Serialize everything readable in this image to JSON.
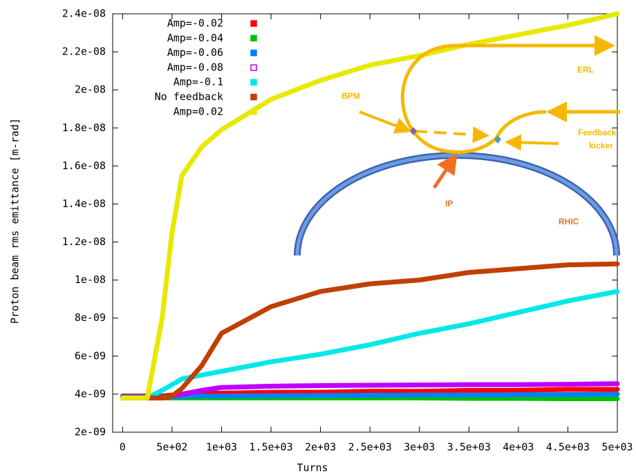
{
  "chart_data": {
    "type": "line",
    "x_label": "Turns",
    "y_label": "Proton beam rms emittance [m-rad]",
    "legend": "upper left",
    "xlim": [
      -100,
      5000
    ],
    "ylim": [
      2e-09,
      2.4e-08
    ],
    "xticks": [
      0,
      {
        "value": 500,
        "label": "5e+02"
      },
      {
        "value": 1000,
        "label": "1e+03"
      },
      {
        "value": 1500,
        "label": "1.5e+03"
      },
      {
        "value": 2000,
        "label": "2e+03"
      },
      {
        "value": 2500,
        "label": "2.5e+03"
      },
      {
        "value": 3000,
        "label": "3e+03"
      },
      {
        "value": 3500,
        "label": "3.5e+03"
      },
      {
        "value": 4000,
        "label": "4e+03"
      },
      {
        "value": 4500,
        "label": "4.5e+03"
      },
      {
        "value": 5000,
        "label": "5e+03"
      }
    ],
    "yticks": [
      {
        "value": 2e-09,
        "label": "2e-09"
      },
      {
        "value": 4e-09,
        "label": "4e-09"
      },
      {
        "value": 6e-09,
        "label": "6e-09"
      },
      {
        "value": 8e-09,
        "label": "8e-09"
      },
      {
        "value": 1e-08,
        "label": "1e-08"
      },
      {
        "value": 1.2e-08,
        "label": "1.2e-08"
      },
      {
        "value": 1.4e-08,
        "label": "1.4e-08"
      },
      {
        "value": 1.6e-08,
        "label": "1.6e-08"
      },
      {
        "value": 1.8e-08,
        "label": "1.8e-08"
      },
      {
        "value": 2e-08,
        "label": "2e-08"
      },
      {
        "value": 2.2e-08,
        "label": "2.2e-08"
      },
      {
        "value": 2.4e-08,
        "label": "2.4e-08"
      }
    ],
    "x": [
      0,
      250,
      400,
      500,
      600,
      800,
      1000,
      1500,
      2000,
      2500,
      3000,
      3500,
      4000,
      4500,
      5000
    ],
    "series": [
      {
        "name": "Amp=-0.02",
        "color": "#ff0000",
        "values": [
          3.9e-09,
          3.9e-09,
          3.9e-09,
          3.95e-09,
          4e-09,
          4.05e-09,
          4.05e-09,
          4.1e-09,
          4.1e-09,
          4.15e-09,
          4.15e-09,
          4.2e-09,
          4.2e-09,
          4.25e-09,
          4.25e-09
        ]
      },
      {
        "name": "Amp=-0.04",
        "color": "#00c000",
        "values": [
          3.8e-09,
          3.8e-09,
          3.8e-09,
          3.8e-09,
          3.8e-09,
          3.8e-09,
          3.8e-09,
          3.8e-09,
          3.8e-09,
          3.8e-09,
          3.8e-09,
          3.78e-09,
          3.78e-09,
          3.76e-09,
          3.76e-09
        ]
      },
      {
        "name": "Amp=-0.06",
        "color": "#0080ff",
        "values": [
          3.85e-09,
          3.85e-09,
          3.85e-09,
          3.85e-09,
          3.88e-09,
          3.9e-09,
          3.9e-09,
          3.92e-09,
          3.93e-09,
          3.94e-09,
          3.95e-09,
          3.96e-09,
          3.97e-09,
          3.98e-09,
          4e-09
        ]
      },
      {
        "name": "Amp=-0.08",
        "color": "#c000ff",
        "values": [
          3.8e-09,
          3.8e-09,
          3.8e-09,
          3.9e-09,
          4e-09,
          4.2e-09,
          4.35e-09,
          4.42e-09,
          4.45e-09,
          4.47e-09,
          4.48e-09,
          4.5e-09,
          4.5e-09,
          4.52e-09,
          4.55e-09
        ]
      },
      {
        "name": "Amp=-0.1",
        "color": "#00e8e8",
        "values": [
          3.8e-09,
          3.8e-09,
          4.2e-09,
          4.5e-09,
          4.8e-09,
          5e-09,
          5.2e-09,
          5.7e-09,
          6.1e-09,
          6.6e-09,
          7.2e-09,
          7.7e-09,
          8.3e-09,
          8.9e-09,
          9.4e-09
        ]
      },
      {
        "name": "No feedback",
        "color": "#c04000",
        "values": [
          3.8e-09,
          3.8e-09,
          3.8e-09,
          3.9e-09,
          4.3e-09,
          5.5e-09,
          7.2e-09,
          8.6e-09,
          9.4e-09,
          9.8e-09,
          1e-08,
          1.04e-08,
          1.06e-08,
          1.08e-08,
          1.085e-08
        ]
      },
      {
        "name": "Amp=0.02",
        "color": "#e8e800",
        "values": [
          3.8e-09,
          3.8e-09,
          8e-09,
          1.25e-08,
          1.55e-08,
          1.7e-08,
          1.79e-08,
          1.95e-08,
          2.05e-08,
          2.13e-08,
          2.18e-08,
          2.24e-08,
          2.29e-08,
          2.34e-08,
          2.4e-08
        ]
      }
    ],
    "annotations": [
      "ERL",
      "BPM",
      "Feedback",
      "kicker",
      "IP",
      "RHIC"
    ]
  }
}
